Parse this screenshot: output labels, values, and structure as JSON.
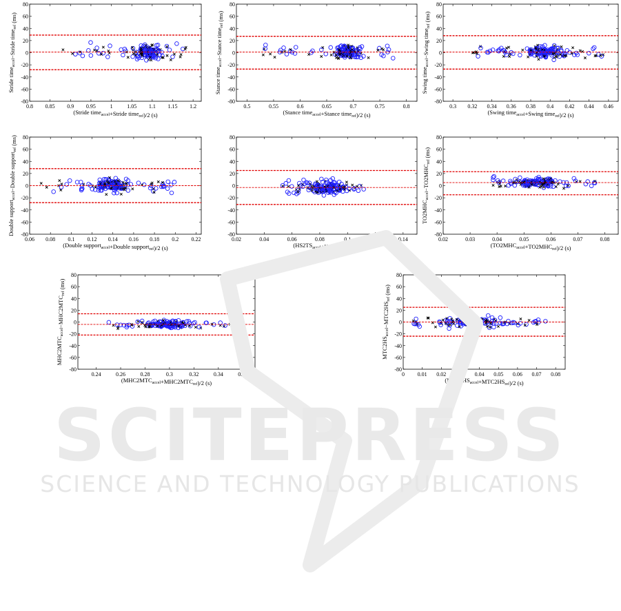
{
  "watermark": {
    "line1": "SCITEPRESS",
    "line2": "SCIENCE AND TECHNOLOGY PUBLICATIONS"
  },
  "colors": {
    "accel_marker": "#1f1fff",
    "ref_marker": "#000000",
    "limits": "#e00000",
    "watermark": "#e6e6e6"
  },
  "chart_data": [
    {
      "type": "scatter",
      "name": "stride",
      "xlabel": "(Stride time_accel+Stride time_ref)/2 (s)",
      "ylabel": "Stride time_accel−Stride time_ref",
      "yunit": "(ms)",
      "xlim": [
        0.8,
        1.22
      ],
      "ylim": [
        -80,
        80
      ],
      "xticks": [
        "0.8",
        "0.85",
        "0.9",
        "0.95",
        "1",
        "1.05",
        "1.1",
        "1.15",
        "1.2"
      ],
      "yticks": [
        "-80",
        "-60",
        "-40",
        "-20",
        "0",
        "20",
        "40",
        "60",
        "80"
      ],
      "limits": [
        29,
        1,
        -28
      ],
      "x_center": [
        0.88,
        1.09,
        1.19
      ],
      "x_spread": 0.04,
      "y_spread": 19
    },
    {
      "type": "scatter",
      "name": "stance",
      "xlabel": "(Stance time_accel+Stance time_ref)/2 (s)",
      "ylabel": "Stance time_accel−Stance time_ref",
      "yunit": "(ms)",
      "xlim": [
        0.48,
        0.82
      ],
      "ylim": [
        -80,
        80
      ],
      "xticks": [
        "0.5",
        "0.55",
        "0.6",
        "0.65",
        "0.7",
        "0.75",
        "0.8"
      ],
      "yticks": [
        "-80",
        "-60",
        "-40",
        "-20",
        "0",
        "20",
        "40",
        "60",
        "80"
      ],
      "limits": [
        27,
        1,
        -27
      ],
      "x_center": [
        0.53,
        0.69,
        0.78
      ],
      "x_spread": 0.035,
      "y_spread": 16
    },
    {
      "type": "scatter",
      "name": "swing",
      "xlabel": "(Swing time_accel+Swing time_ref)/2 (s)",
      "ylabel": "Swing time_accel−Swing time_ref",
      "yunit": "(ms)",
      "xlim": [
        0.29,
        0.47
      ],
      "ylim": [
        -80,
        80
      ],
      "xticks": [
        "0.3",
        "0.32",
        "0.34",
        "0.36",
        "0.38",
        "0.4",
        "0.42",
        "0.44",
        "0.46"
      ],
      "yticks": [
        "-80",
        "-60",
        "-40",
        "-20",
        "0",
        "20",
        "40",
        "60",
        "80"
      ],
      "limits": [
        28,
        1,
        -27
      ],
      "x_center": [
        0.32,
        0.395,
        0.455
      ],
      "x_spread": 0.025,
      "y_spread": 16
    },
    {
      "type": "scatter",
      "name": "double-support",
      "xlabel": "(Double support_accel+Double support_ref)/2 (s)",
      "ylabel": "Double support_accel−Double support_ref",
      "yunit": "(ms)",
      "xlim": [
        0.06,
        0.225
      ],
      "ylim": [
        -80,
        80
      ],
      "xticks": [
        "0.06",
        "0.08",
        "0.1",
        "0.12",
        "0.14",
        "0.16",
        "0.18",
        "0.2",
        "0.22"
      ],
      "yticks": [
        "-80",
        "-60",
        "-40",
        "-20",
        "0",
        "20",
        "40",
        "60",
        "80"
      ],
      "limits": [
        28,
        0,
        -28
      ],
      "x_center": [
        0.07,
        0.14,
        0.2
      ],
      "x_spread": 0.025,
      "y_spread": 17
    },
    {
      "type": "scatter",
      "name": "hs2ts",
      "xlabel": "(HS2TS_accel+HS2TS_ref)/2 (s)",
      "ylabel": "",
      "yunit": "",
      "xlim": [
        0.02,
        0.15
      ],
      "ylim": [
        -80,
        80
      ],
      "xticks": [
        "0.02",
        "0.04",
        "0.06",
        "0.08",
        "0.1",
        "0.12",
        "0.14"
      ],
      "yticks": [
        "-80",
        "-60",
        "-40",
        "-20",
        "0",
        "20",
        "40",
        "60",
        "80"
      ],
      "limits": [
        25,
        -3,
        -31
      ],
      "x_center": [
        0.05,
        0.085,
        0.115
      ],
      "x_spread": 0.02,
      "y_spread": 17
    },
    {
      "type": "scatter",
      "name": "to2mhc",
      "xlabel": "(TO2MHC_accel+TO2MHC_ref)/2 (s)",
      "ylabel": "TO2MHC_accel−TO2MHC_ref",
      "yunit": "(ms)",
      "xlim": [
        0.02,
        0.085
      ],
      "ylim": [
        -80,
        80
      ],
      "xticks": [
        "0.02",
        "0.03",
        "0.04",
        "0.05",
        "0.06",
        "0.07",
        "0.08"
      ],
      "yticks": [
        "-80",
        "-60",
        "-40",
        "-20",
        "0",
        "20",
        "40",
        "60",
        "80"
      ],
      "limits": [
        23,
        5,
        -15
      ],
      "x_center": [
        0.038,
        0.055,
        0.077
      ],
      "x_spread": 0.012,
      "y_spread": 12
    },
    {
      "type": "scatter",
      "name": "mhc2mtc",
      "xlabel": "(MHC2MTC_accel+MHC2MTC_ref)/2 (s)",
      "ylabel": "MHC2MTC_accel−MHC2MTC_ref",
      "yunit": "(ms)",
      "xlim": [
        0.225,
        0.37
      ],
      "ylim": [
        -80,
        80
      ],
      "xticks": [
        "0.24",
        "0.26",
        "0.28",
        "0.3",
        "0.32",
        "0.34",
        "0.36"
      ],
      "yticks": [
        "-80",
        "-60",
        "-40",
        "-20",
        "0",
        "20",
        "40",
        "60",
        "80"
      ],
      "limits": [
        14,
        -4,
        -22
      ],
      "x_center": [
        0.25,
        0.3,
        0.355
      ],
      "x_spread": 0.025,
      "y_spread": 10
    },
    {
      "type": "scatter",
      "name": "mtc2hs",
      "xlabel": "(MTC2HS_accel+MTC2HS_ref)/2 (s)",
      "ylabel": "MTC2HS_accel−MTC2HS_ref",
      "yunit": "(ms)",
      "xlim": [
        0.0,
        0.085
      ],
      "ylim": [
        -80,
        80
      ],
      "xticks": [
        "0",
        "0.01",
        "0.02",
        "0.03",
        "0.04",
        "0.05",
        "0.06",
        "0.07",
        "0.08"
      ],
      "yticks": [
        "-80",
        "-60",
        "-40",
        "-20",
        "0",
        "20",
        "40",
        "60",
        "80"
      ],
      "limits": [
        25,
        0,
        -24
      ],
      "x_center": [
        0.005,
        0.035,
        0.075
      ],
      "x_spread": 0.02,
      "y_spread": 15
    }
  ]
}
